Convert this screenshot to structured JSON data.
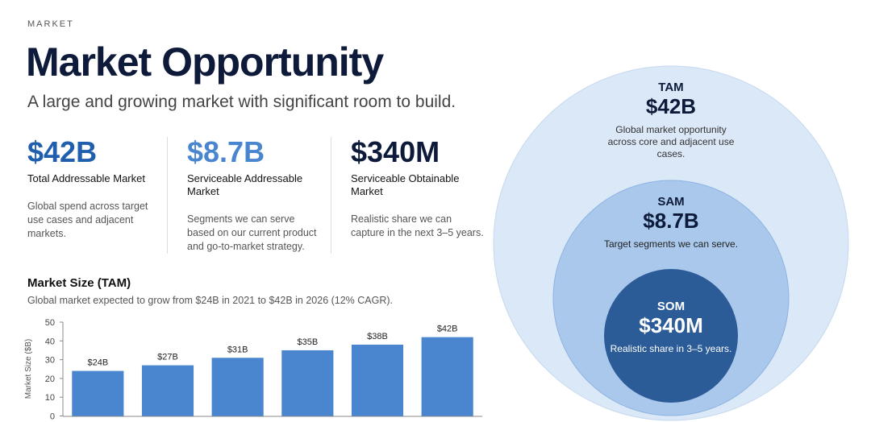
{
  "header": {
    "eyebrow": "MARKET",
    "title": "Market Opportunity",
    "subtitle": "A large and growing market with significant room to build."
  },
  "stats": [
    {
      "value": "$42B",
      "label": "Total Addressable Market",
      "desc": "Global spend across target use cases and adjacent markets."
    },
    {
      "value": "$8.7B",
      "label": "Serviceable Addressable Market",
      "desc": "Segments we can serve based on our current product and go-to-market strategy."
    },
    {
      "value": "$340M",
      "label": "Serviceable Obtainable Market",
      "desc": "Realistic share we can capture in the next 3–5 years."
    }
  ],
  "circles": [
    {
      "name": "TAM",
      "value": "$42B",
      "desc": "Global market opportunity across core and adjacent use cases."
    },
    {
      "name": "SAM",
      "value": "$8.7B",
      "desc": "Target segments we can serve."
    },
    {
      "name": "SOM",
      "value": "$340M",
      "desc": "Realistic share in 3–5 years."
    }
  ],
  "chart_data": {
    "type": "bar",
    "title": "Market Size (TAM)",
    "subtitle": "Global market expected to grow from $24B in 2021 to $42B in 2026 (12% CAGR).",
    "y_label": "Market Size ($B)",
    "categories": [
      null,
      null,
      null,
      null,
      null,
      null
    ],
    "values": [
      24,
      27,
      31,
      35,
      38,
      42
    ],
    "value_labels": [
      "$24B",
      "$27B",
      "$31B",
      "$35B",
      "$38B",
      "$42B"
    ],
    "color": "#4a86cf",
    "ylim": [
      0,
      50
    ],
    "yticks": [
      0,
      10,
      20,
      30,
      40,
      50
    ]
  }
}
